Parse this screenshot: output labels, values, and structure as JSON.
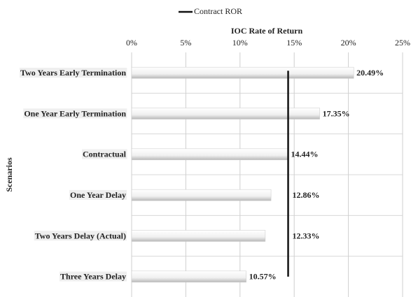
{
  "chart_data": {
    "type": "bar",
    "orientation": "horizontal",
    "x_axis_label": "IOC Rate of Return",
    "y_axis_label": "Scenarios",
    "categories": [
      "Two Years Early Termination",
      "One Year Early Termination",
      "Contractual",
      "One Year Delay",
      "Two Years Delay (Actual)",
      "Three Years Delay"
    ],
    "values": [
      20.49,
      17.35,
      14.44,
      12.86,
      12.33,
      10.57
    ],
    "value_labels": [
      "20.49%",
      "17.35%",
      "14.44%",
      "12.86%",
      "12.33%",
      "10.57%"
    ],
    "color": "#f2f2f2",
    "xlim": [
      0,
      25
    ],
    "xticks": [
      {
        "value": 0,
        "label": "0%"
      },
      {
        "value": 5,
        "label": "5%"
      },
      {
        "value": 10,
        "label": "10%"
      },
      {
        "value": 15,
        "label": "15%"
      },
      {
        "value": 20,
        "label": "20%"
      },
      {
        "value": 25,
        "label": "25%"
      }
    ],
    "grid": true,
    "reference_line": {
      "name": "Contract ROR",
      "value": 14.44,
      "color": "#111111"
    },
    "legend": "top"
  }
}
